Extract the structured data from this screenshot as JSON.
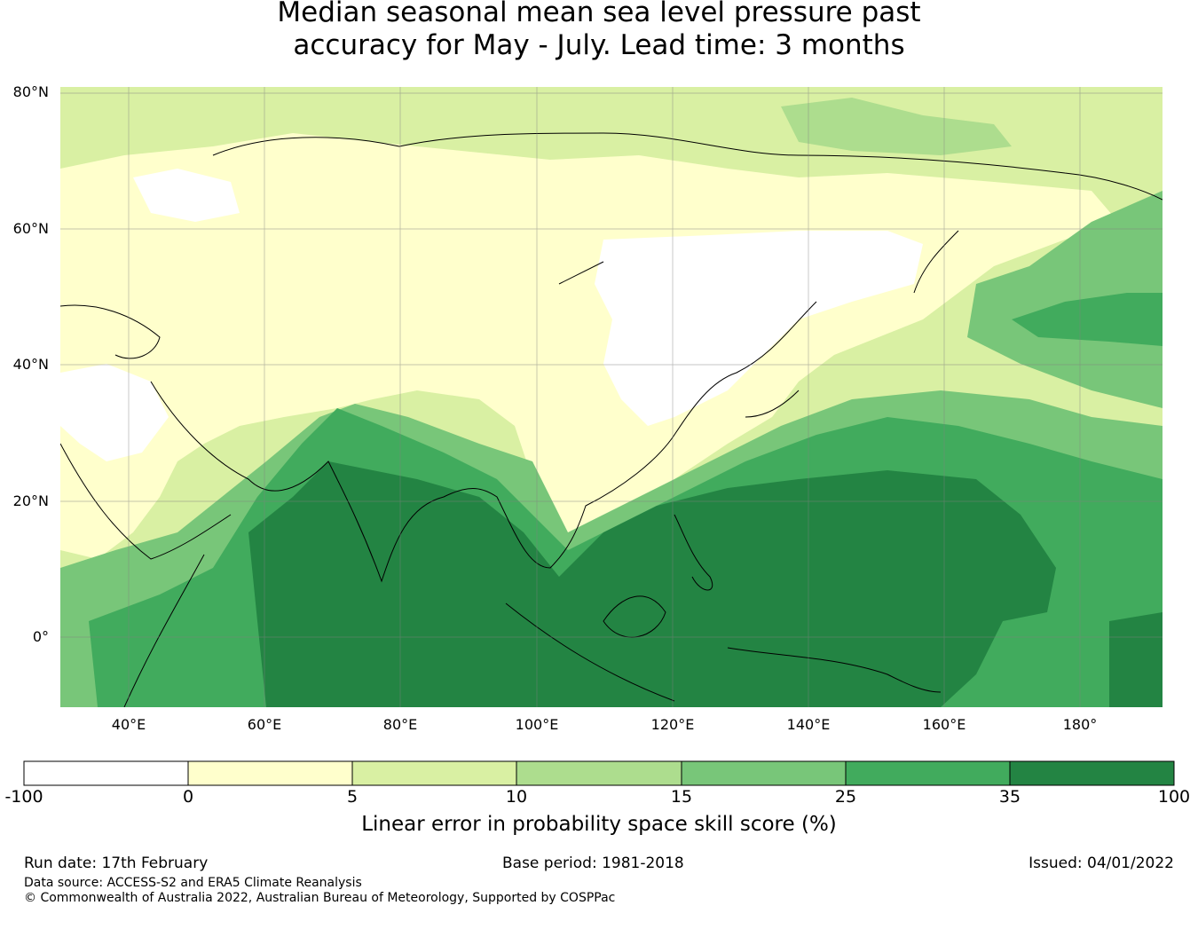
{
  "title": {
    "line1": "Median seasonal mean sea level pressure past",
    "line2": "accuracy for May - July. Lead time: 3 months"
  },
  "map": {
    "lat_labels": [
      "80°N",
      "60°N",
      "40°N",
      "20°N",
      "0°"
    ],
    "lon_labels": [
      "40°E",
      "60°E",
      "80°E",
      "100°E",
      "120°E",
      "140°E",
      "160°E",
      "180°"
    ]
  },
  "colorbar": {
    "ticks": [
      "-100",
      "0",
      "5",
      "10",
      "15",
      "25",
      "35",
      "100"
    ],
    "colors": [
      "#ffffff",
      "#ffffcc",
      "#d9f0a3",
      "#addd8e",
      "#78c679",
      "#41ab5d",
      "#238443"
    ],
    "label": "Linear error in probability space skill score (%)"
  },
  "footer": {
    "run_date": "Run date: 17th February",
    "base_period": "Base period: 1981-2018",
    "issued": "Issued: 04/01/2022",
    "data_source": "Data source: ACCESS-S2 and ERA5 Climate Reanalysis",
    "copyright": "© Commonwealth of Australia 2022, Australian Bureau of Meteorology, Supported by COSPPac"
  }
}
